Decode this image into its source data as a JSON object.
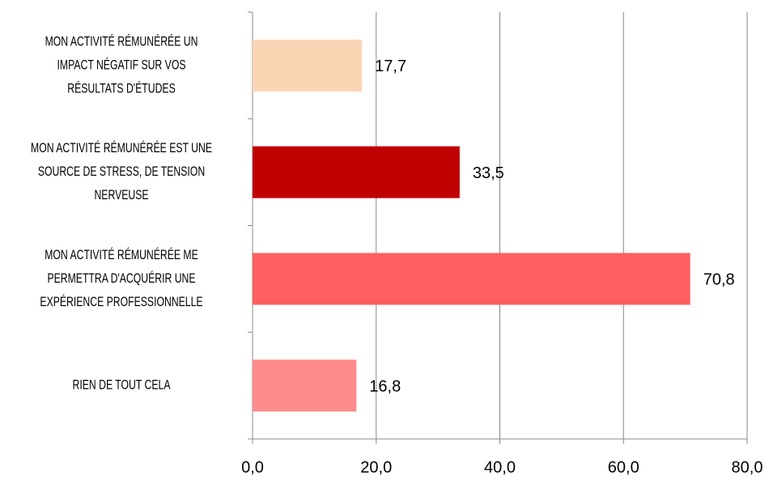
{
  "chart_data": {
    "type": "bar",
    "orientation": "horizontal",
    "categories": [
      "MON ACTIVITÉ RÉMUNÉRÉE UN IMPACT NÉGATIF SUR VOS RÉSULTATS D'ÉTUDES",
      "MON ACTIVITÉ RÉMUNÉRÉE EST UNE SOURCE DE STRESS, DE TENSION NERVEUSE",
      "MON ACTIVITÉ RÉMUNÉRÉE ME PERMETTRA D'ACQUÉRIR UNE EXPÉRIENCE PROFESSIONNELLE",
      "RIEN DE TOUT CELA"
    ],
    "values": [
      17.7,
      33.5,
      70.8,
      16.8
    ],
    "value_labels": [
      "17,7",
      "33,5",
      "70,8",
      "16,8"
    ],
    "colors": [
      "#fcd5b5",
      "#c00000",
      "#ff5f5f",
      "#ff8b8b"
    ],
    "xlim": [
      0,
      80
    ],
    "xticks": [
      {
        "value": 0,
        "label": "0,0"
      },
      {
        "value": 20,
        "label": "20,0"
      },
      {
        "value": 40,
        "label": "40,0"
      },
      {
        "value": 60,
        "label": "60,0"
      },
      {
        "value": 80,
        "label": "80,0"
      }
    ],
    "grid": true
  }
}
